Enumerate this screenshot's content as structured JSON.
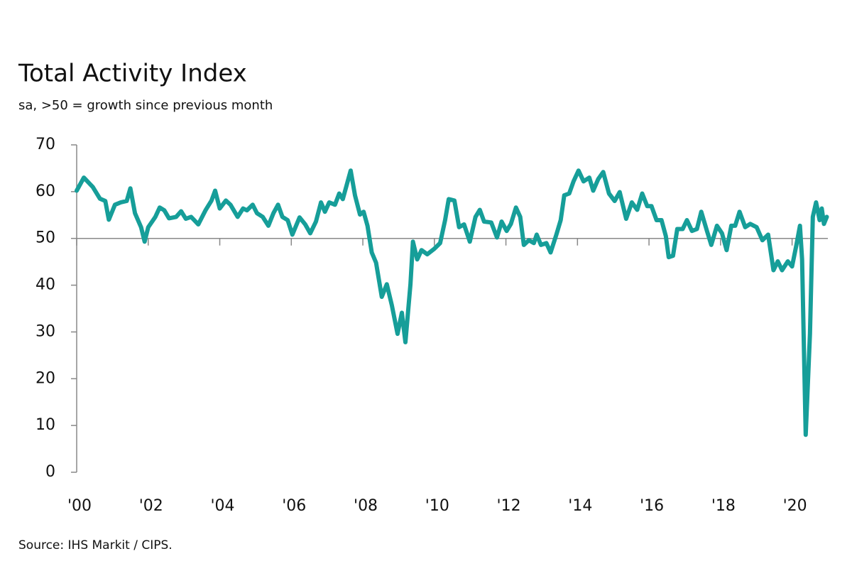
{
  "chart_data": {
    "type": "line",
    "title": "Total Activity Index",
    "subtitle": "sa, >50 = growth since previous month",
    "source": "Source: IHS Markit / CIPS.",
    "x": [
      2000.0,
      2000.2,
      2000.45,
      2000.65,
      2000.8,
      2000.9,
      2001.07,
      2001.23,
      2001.4,
      2001.5,
      2001.63,
      2001.8,
      2001.9,
      2002.0,
      2002.2,
      2002.32,
      2002.45,
      2002.58,
      2002.78,
      2002.92,
      2003.05,
      2003.2,
      2003.4,
      2003.6,
      2003.77,
      2003.87,
      2004.0,
      2004.17,
      2004.3,
      2004.5,
      2004.65,
      2004.76,
      2004.92,
      2005.04,
      2005.2,
      2005.36,
      2005.5,
      2005.63,
      2005.75,
      2005.9,
      2006.03,
      2006.23,
      2006.39,
      2006.53,
      2006.69,
      2006.83,
      2006.94,
      2007.06,
      2007.22,
      2007.34,
      2007.44,
      2007.54,
      2007.66,
      2007.78,
      2007.92,
      2008.02,
      2008.13,
      2008.25,
      2008.37,
      2008.53,
      2008.67,
      2008.81,
      2008.97,
      2009.09,
      2009.19,
      2009.33,
      2009.4,
      2009.52,
      2009.64,
      2009.8,
      2010.0,
      2010.16,
      2010.3,
      2010.4,
      2010.56,
      2010.69,
      2010.83,
      2010.99,
      2011.15,
      2011.27,
      2011.39,
      2011.59,
      2011.75,
      2011.88,
      2012.02,
      2012.14,
      2012.28,
      2012.4,
      2012.5,
      2012.64,
      2012.78,
      2012.86,
      2012.98,
      2013.13,
      2013.25,
      2013.41,
      2013.53,
      2013.63,
      2013.77,
      2013.89,
      2014.03,
      2014.17,
      2014.33,
      2014.44,
      2014.58,
      2014.72,
      2014.88,
      2015.04,
      2015.18,
      2015.36,
      2015.52,
      2015.67,
      2015.81,
      2015.95,
      2016.07,
      2016.21,
      2016.35,
      2016.47,
      2016.55,
      2016.67,
      2016.79,
      2016.94,
      2017.06,
      2017.2,
      2017.34,
      2017.46,
      2017.62,
      2017.74,
      2017.9,
      2018.04,
      2018.17,
      2018.3,
      2018.41,
      2018.53,
      2018.69,
      2018.83,
      2019.01,
      2019.17,
      2019.33,
      2019.48,
      2019.6,
      2019.72,
      2019.88,
      2020.0,
      2020.12,
      2020.22,
      2020.28,
      2020.38,
      2020.5,
      2020.58,
      2020.67,
      2020.77,
      2020.83,
      2020.89,
      2020.97
    ],
    "values": [
      60.2,
      63,
      61,
      58.5,
      58,
      54,
      57.2,
      57.7,
      58,
      60.7,
      55.4,
      52.4,
      49.3,
      52.4,
      54.6,
      56.6,
      56,
      54.3,
      54.6,
      55.8,
      54.2,
      54.6,
      53,
      56,
      58.1,
      60.2,
      56.4,
      58.1,
      57.2,
      54.6,
      56.4,
      56,
      57.2,
      55.4,
      54.6,
      52.7,
      55.4,
      57.2,
      54.6,
      53.9,
      50.8,
      54.5,
      53,
      51.1,
      53.6,
      57.7,
      55.7,
      57.7,
      57.2,
      59.6,
      58.4,
      61.2,
      64.5,
      59.2,
      55.1,
      55.7,
      52.7,
      47,
      44.8,
      37.5,
      40.2,
      35.7,
      29.6,
      34.1,
      27.8,
      40.2,
      49.3,
      45.5,
      47.5,
      46.6,
      47.8,
      49,
      53.9,
      58.4,
      58.1,
      52.4,
      53,
      49.3,
      54.6,
      56.1,
      53.6,
      53.4,
      50.2,
      53.6,
      51.6,
      53.1,
      56.6,
      54.6,
      48.6,
      49.6,
      49,
      50.8,
      48.6,
      49,
      47,
      50.8,
      53.9,
      59.2,
      59.6,
      62.2,
      64.5,
      62.2,
      63,
      60.2,
      62.7,
      64.2,
      59.6,
      58,
      59.9,
      54.2,
      57.7,
      56.1,
      59.6,
      56.9,
      56.9,
      53.9,
      53.9,
      50.5,
      46,
      46.3,
      52,
      52,
      53.9,
      51.6,
      52,
      55.7,
      51.6,
      48.6,
      52.7,
      51.1,
      47.5,
      52.7,
      52.7,
      55.7,
      52.4,
      53.1,
      52.4,
      49.6,
      50.8,
      43.2,
      45.1,
      43.2,
      45.1,
      44,
      48.6,
      52.7,
      45.5,
      8,
      29.6,
      54.6,
      57.7,
      53.9,
      56.4,
      53.1,
      54.6
    ],
    "color": "#169e99",
    "xlim": [
      2000,
      2021
    ],
    "ylim": [
      0,
      70
    ],
    "yticks": [
      0,
      10,
      20,
      30,
      40,
      50,
      60,
      70
    ],
    "xticks": [
      {
        "value": 2000,
        "label": "'00"
      },
      {
        "value": 2002,
        "label": "'02"
      },
      {
        "value": 2004,
        "label": "'04"
      },
      {
        "value": 2006,
        "label": "'06"
      },
      {
        "value": 2008,
        "label": "'08"
      },
      {
        "value": 2010,
        "label": "'10"
      },
      {
        "value": 2012,
        "label": "'12"
      },
      {
        "value": 2014,
        "label": "'14"
      },
      {
        "value": 2016,
        "label": "'16"
      },
      {
        "value": 2018,
        "label": "'18"
      },
      {
        "value": 2020,
        "label": "'20"
      }
    ],
    "x_axis_at": 50
  }
}
